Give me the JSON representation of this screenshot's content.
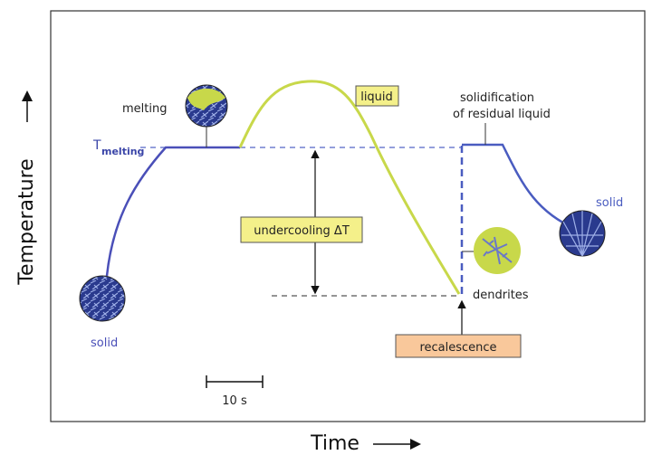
{
  "axes": {
    "x_label": "Time",
    "y_label": "Temperature"
  },
  "labels": {
    "melting": "melting",
    "t_melting": {
      "symbol": "T",
      "subscript": "melting"
    },
    "liquid": "liquid",
    "solidification": [
      "solidification",
      "of residual liquid"
    ],
    "undercooling": "undercooling ΔT",
    "solid_left": "solid",
    "solid_right": "solid",
    "dendrites": "dendrites",
    "recalescence": "recalescence",
    "scale": "10 s"
  }
}
